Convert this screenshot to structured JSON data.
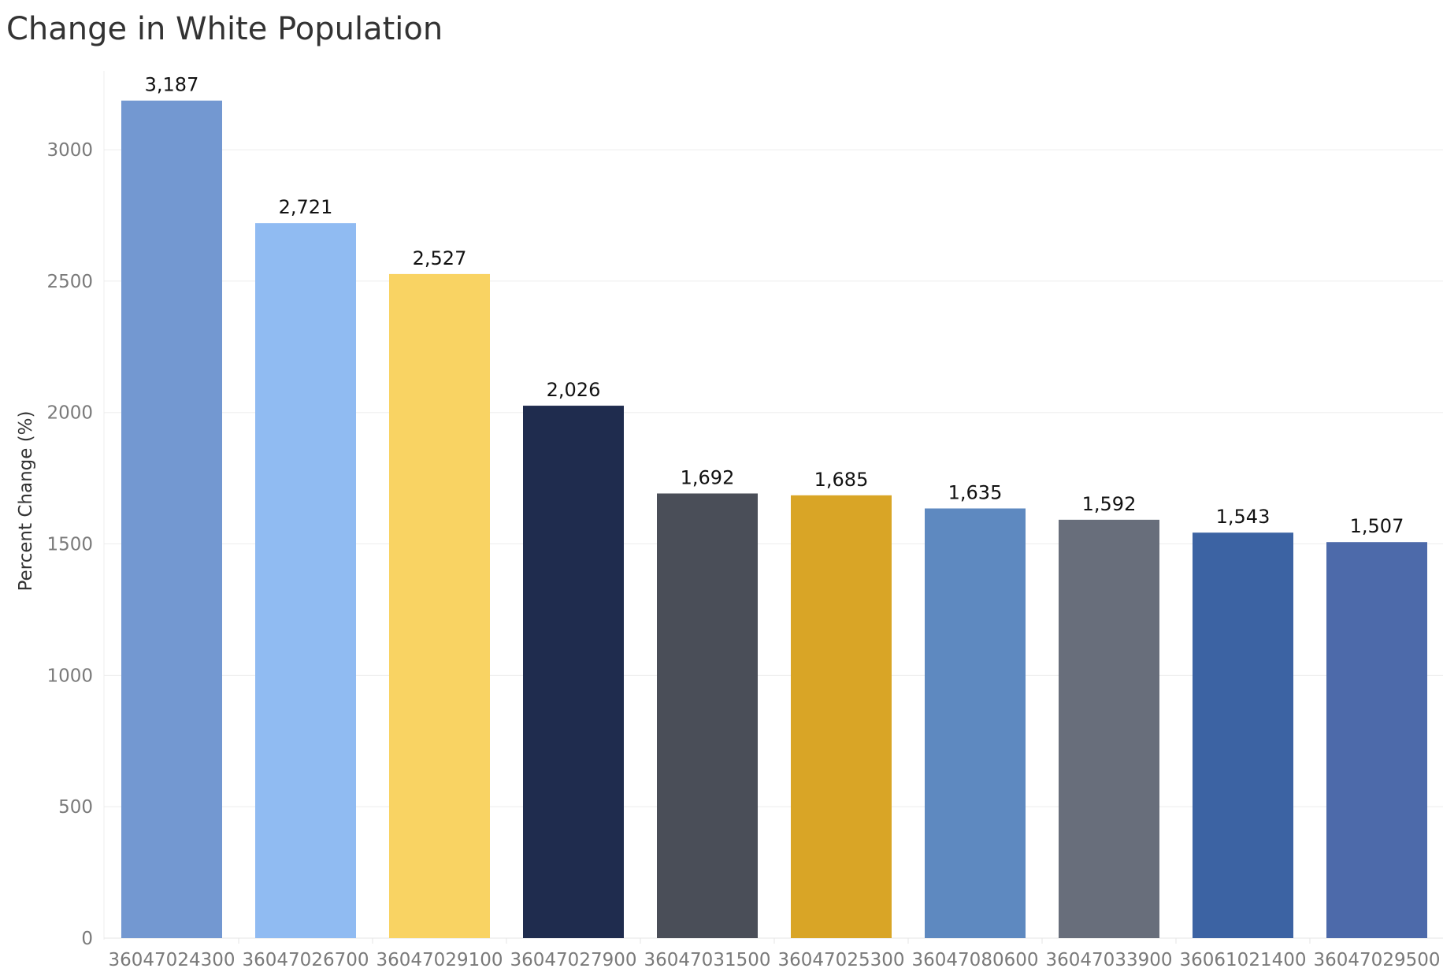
{
  "chart_data": {
    "type": "bar",
    "title": "Change in White Population",
    "xlabel": "",
    "ylabel": "Percent Change (%)",
    "ylim": [
      0,
      3300
    ],
    "yticks": [
      0,
      500,
      1000,
      1500,
      2000,
      2500,
      3000
    ],
    "grid": true,
    "categories": [
      "36047024300",
      "36047026700",
      "36047029100",
      "36047027900",
      "36047031500",
      "36047025300",
      "36047080600",
      "36047033900",
      "36061021400",
      "36047029500"
    ],
    "values": [
      3187,
      2721,
      2527,
      2026,
      1692,
      1685,
      1635,
      1592,
      1543,
      1507
    ],
    "value_labels": [
      "3,187",
      "2,721",
      "2,527",
      "2,026",
      "1,692",
      "1,685",
      "1,635",
      "1,592",
      "1,543",
      "1,507"
    ],
    "colors": [
      "#7398d1",
      "#90bbf2",
      "#f9d363",
      "#1f2c4e",
      "#4a4e58",
      "#d9a526",
      "#5e89c0",
      "#686e7b",
      "#3c63a3",
      "#4d6aaa"
    ]
  }
}
